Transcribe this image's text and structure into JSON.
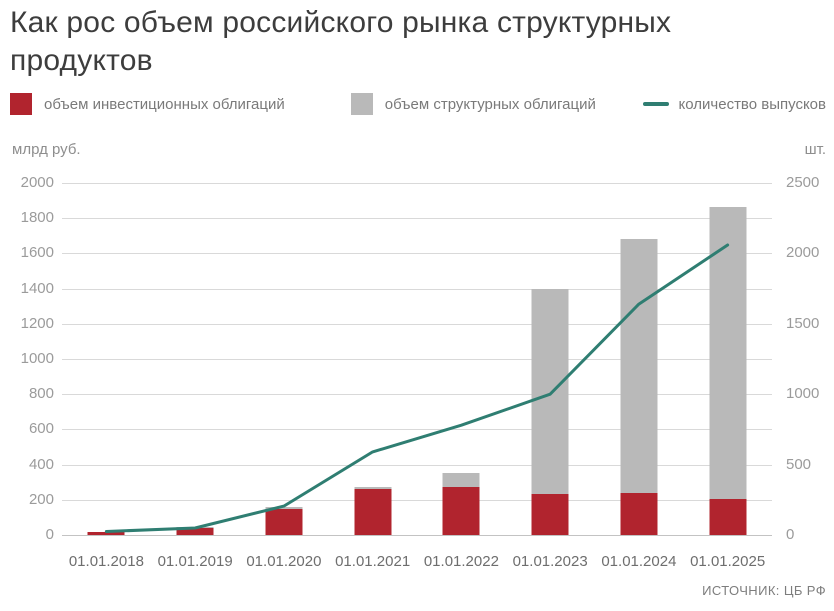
{
  "title": "Как рос объем российского рынка структурных продуктов",
  "source": "ИСТОЧНИК: ЦБ РФ",
  "legend": [
    {
      "label": "объем инвестиционных облигаций",
      "color": "#b1242e",
      "marker": "square"
    },
    {
      "label": "объем структурных облигаций",
      "color": "#b9b9b9",
      "marker": "square"
    },
    {
      "label": "количество выпусков",
      "color": "#2f7e72",
      "marker": "line"
    }
  ],
  "chart_data": {
    "type": "bar",
    "subtype": "stacked-bars-with-line",
    "categories": [
      "01.01.2018",
      "01.01.2019",
      "01.01.2020",
      "01.01.2021",
      "01.01.2022",
      "01.01.2023",
      "01.01.2024",
      "01.01.2025"
    ],
    "series": [
      {
        "name": "объем инвестиционных облигаций",
        "type": "bar",
        "stack": "volume",
        "axis": "left",
        "color": "#b1242e",
        "values": [
          15,
          40,
          150,
          260,
          270,
          235,
          240,
          205
        ]
      },
      {
        "name": "объем структурных облигаций",
        "type": "bar",
        "stack": "volume",
        "axis": "left",
        "color": "#b9b9b9",
        "values": [
          0,
          5,
          10,
          15,
          85,
          1165,
          1440,
          1660
        ]
      },
      {
        "name": "количество выпусков",
        "type": "line",
        "axis": "right",
        "color": "#2f7e72",
        "values": [
          25,
          50,
          205,
          590,
          780,
          1000,
          1640,
          2060
        ]
      }
    ],
    "stack_totals": [
      15,
      45,
      160,
      275,
      355,
      1400,
      1680,
      1865
    ],
    "left_axis": {
      "label": "млрд руб.",
      "min": 0,
      "max": 2000,
      "step": 200
    },
    "right_axis": {
      "label": "шт.",
      "min": 0,
      "max": 2500,
      "step": 500
    },
    "grid": true,
    "legend_position": "top",
    "grid_color": "#d9d9d9"
  }
}
